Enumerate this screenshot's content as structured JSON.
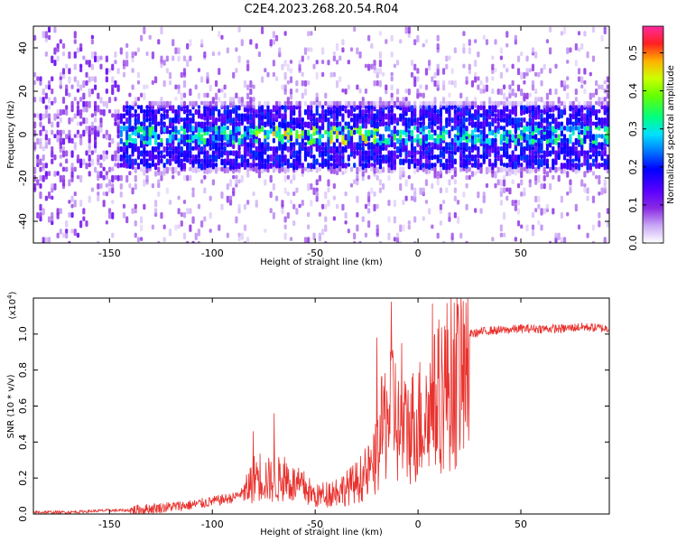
{
  "title": "C2E4.2023.268.20.54.R04",
  "colors": {
    "snr_line": "#e8322e",
    "spectrogram_colormap": [
      "#ffffff",
      "#c9a8f5",
      "#8a2be2",
      "#5a00ff",
      "#0000ff",
      "#00d8ff",
      "#00ff66",
      "#aaff00",
      "#ffaa00",
      "#ff0044",
      "#ff2aa0"
    ]
  },
  "chart_data": [
    {
      "type": "heatmap",
      "title": "C2E4.2023.268.20.54.R04",
      "xlabel": "Height of straight line (km)",
      "ylabel": "Frequency (Hz)",
      "xlim": [
        -187,
        93
      ],
      "ylim": [
        -50,
        50
      ],
      "x_ticks": [
        -150,
        -100,
        -50,
        0,
        50
      ],
      "x_tick_labels": [
        "-150",
        "-100",
        "-50",
        "0",
        "50"
      ],
      "y_ticks": [
        -40,
        -20,
        0,
        20,
        40
      ],
      "y_tick_labels": [
        "-40",
        "-20",
        "0",
        "20",
        "40"
      ],
      "colorbar": {
        "label": "Normalized spectral amplitude",
        "range": [
          0,
          0.57
        ],
        "ticks": [
          0.0,
          0.1,
          0.2,
          0.3,
          0.4,
          0.5
        ],
        "tick_labels": [
          "0.0",
          "0.1",
          "0.2",
          "0.3",
          "0.4",
          "0.5"
        ]
      },
      "features": {
        "signal_band_center_hz": 0,
        "band_onset_km": -145,
        "band_peak_amplitude": 0.5,
        "background_amplitude": 0.1
      }
    },
    {
      "type": "line",
      "xlabel": "Height of straight line (km)",
      "ylabel": "SNR (10 * v/v)",
      "yscale_note": "(x10",
      "yscale_exp": "4",
      "yscale_close": ")",
      "xlim": [
        -187,
        93
      ],
      "ylim": [
        0,
        1.2
      ],
      "x_ticks": [
        -150,
        -100,
        -50,
        0,
        50
      ],
      "x_tick_labels": [
        "-150",
        "-100",
        "-50",
        "0",
        "50"
      ],
      "y_ticks": [
        0.0,
        0.2,
        0.4,
        0.6,
        0.8,
        1.0
      ],
      "y_tick_labels": [
        "0.0",
        "0.2",
        "0.4",
        "0.6",
        "0.8",
        "1.0"
      ],
      "series": [
        {
          "x": [
            -187,
            -170,
            -150,
            -140,
            -130,
            -120,
            -110,
            -100,
            -90,
            -85,
            -82,
            -78,
            -75,
            -70,
            -65,
            -60,
            -55,
            -50,
            -45,
            -40,
            -35,
            -30,
            -25,
            -22,
            -20,
            -18,
            -15,
            -12,
            -10,
            -8,
            -5,
            -2,
            0,
            3,
            6,
            9,
            12,
            15,
            18,
            22,
            25,
            30,
            35,
            40,
            50,
            60,
            70,
            80,
            93
          ],
          "y": [
            0.01,
            0.01,
            0.02,
            0.02,
            0.03,
            0.04,
            0.05,
            0.07,
            0.09,
            0.12,
            0.2,
            0.28,
            0.25,
            0.22,
            0.26,
            0.2,
            0.18,
            0.12,
            0.14,
            0.16,
            0.18,
            0.22,
            0.28,
            0.32,
            0.4,
            0.55,
            0.7,
            0.8,
            0.6,
            0.55,
            0.6,
            0.62,
            0.65,
            0.68,
            0.72,
            0.78,
            0.88,
            0.92,
            0.95,
            0.98,
            1.0,
            1.01,
            1.02,
            1.02,
            1.03,
            1.03,
            1.03,
            1.04,
            1.03
          ],
          "spikes": [
            [
              -80,
              0.46
            ],
            [
              -70,
              0.56
            ],
            [
              -20,
              0.98
            ],
            [
              -13,
              1.18
            ],
            [
              -8,
              0.95
            ],
            [
              7,
              1.17
            ],
            [
              20,
              0.95
            ]
          ]
        }
      ]
    }
  ]
}
